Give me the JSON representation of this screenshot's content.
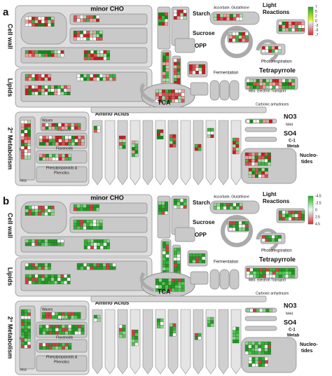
{
  "panels": [
    {
      "letter": "a",
      "legend": [
        "7",
        "5",
        "2",
        "0",
        "-2",
        "-5",
        "-7"
      ],
      "labels": {
        "minor_cho": "minor CHO",
        "starch": "Starch",
        "sucrose": "Sucrose",
        "opp": "OPP",
        "ascorbate": "Ascorbate, Glutathione",
        "light1": "Light",
        "light2": "Reactions",
        "photoresp": "Photorespiration",
        "fermentation": "Fermentation",
        "tetrapyrrole": "Tetrapyrrole",
        "mito": "Mito. Electron Transport",
        "carbonic": "Carbonic anhydrases",
        "tca": "TCA",
        "amino": "Amino Acids",
        "no3": "NO3",
        "nh4": "NH4",
        "so4": "SO4",
        "c1a": "C-1",
        "c1b": "Metab",
        "nuc1": "Nucleo-",
        "nuc2": "tides",
        "cellwall": "Cell wall",
        "lipids": "Lipids",
        "sec": "2° Metabolism",
        "waxes": "Waxes",
        "terpenes": "Terpenes",
        "flavonoids": "Flavonoids",
        "nmisc": "N-misc",
        "misc": "misc",
        "phenyl1": "Phenylpropanoids &",
        "phenyl2": "Phenolics"
      }
    },
    {
      "letter": "b",
      "legend": [
        "-4.5",
        "-2.5",
        "0",
        "2.5",
        "4.5"
      ],
      "labels": {
        "minor_cho": "minor CHO",
        "starch": "Starch",
        "sucrose": "Sucrose",
        "opp": "OPP",
        "ascorbate": "Ascorbate, Glutathione",
        "light1": "Light",
        "light2": "Reactions",
        "photoresp": "Photorespiration",
        "fermentation": "Fermentation",
        "tetrapyrrole": "Tetrapyrrole",
        "mito": "Mito. Electron Transport",
        "carbonic": "Carbonic anhydrases",
        "tca": "TCA",
        "amino": "Amino Acids",
        "no3": "NO3",
        "nh4": "NH4",
        "so4": "SO4",
        "c1a": "C-1",
        "c1b": "Metab",
        "nuc1": "Nucleo-",
        "nuc2": "tides",
        "cellwall": "Cell wall",
        "lipids": "Lipids",
        "sec": "2° Metabolism",
        "waxes": "Waxes",
        "terpenes": "Terpenes",
        "flavonoids": "Flavonoids",
        "nmisc": "N-misc",
        "misc": "misc",
        "phenyl1": "Phenylpropanoids &",
        "phenyl2": "Phenolics"
      }
    }
  ]
}
